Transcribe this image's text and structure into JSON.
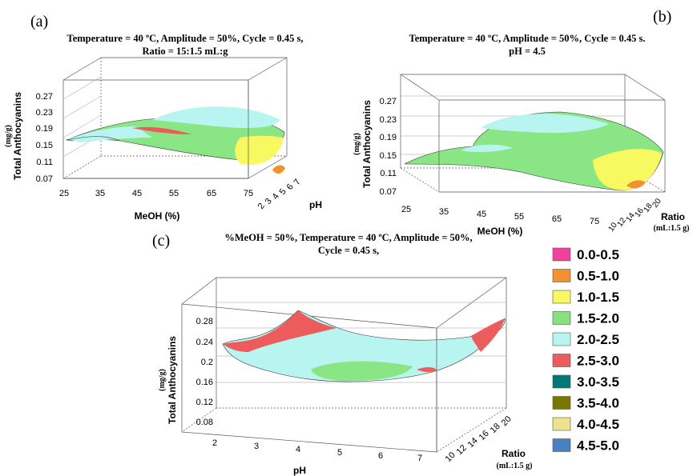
{
  "chart_data": [
    {
      "id": "a",
      "type": "surface3d",
      "panel_label": "(a)",
      "conditions": [
        "Temperature = 40 ºC, Amplitude = 50%, Cycle = 0.45 s,",
        "Ratio = 15:1.5 mL:g"
      ],
      "xlabel": "MeOH  (%)",
      "ylabel": "pH",
      "zlabel": "Total Anthocyanins",
      "zunit": "(mg/g)",
      "x_ticks": [
        "25",
        "35",
        "45",
        "55",
        "65",
        "75"
      ],
      "y_ticks": [
        "2",
        "3",
        "4",
        "5",
        "6",
        "7"
      ],
      "z_ticks": [
        "0.27",
        "0.23",
        "0.19",
        "0.15",
        "0.11",
        "0.07"
      ]
    },
    {
      "id": "b",
      "type": "surface3d",
      "panel_label": "(b)",
      "conditions": [
        "Temperature = 40 ºC, Amplitude = 50%, Cycle = 0.45 s.",
        "pH = 4.5"
      ],
      "xlabel": "MeOH  (%)",
      "ylabel": "Ratio",
      "yunit": "(mL:1.5 g)",
      "zlabel": "Total Anthocyanins",
      "zunit": "(mg/g)",
      "x_ticks": [
        "25",
        "35",
        "45",
        "55",
        "65",
        "75"
      ],
      "y_ticks": [
        "10",
        "12",
        "14",
        "16",
        "18",
        "20"
      ],
      "z_ticks": [
        "0.27",
        "0.23",
        "0.19",
        "0.15",
        "0.11",
        "0.07"
      ]
    },
    {
      "id": "c",
      "type": "surface3d",
      "panel_label": "(c)",
      "conditions": [
        "%MeOH = 50%, Temperature = 40 ºC, Amplitude = 50%,",
        "Cycle = 0.45 s,"
      ],
      "xlabel": "pH",
      "ylabel": "Ratio",
      "yunit": "(mL:1.5 g)",
      "zlabel": "Total Anthocyanins",
      "zunit": "(mg/g)",
      "x_ticks": [
        "2",
        "3",
        "4",
        "5",
        "6",
        "7"
      ],
      "y_ticks": [
        "10",
        "12",
        "14",
        "16",
        "18",
        "20"
      ],
      "z_ticks": [
        "0.28",
        "0.24",
        "0.2",
        "0.16",
        "0.12",
        "0.08"
      ]
    }
  ],
  "legend": [
    {
      "label": "0.0-0.5",
      "color": "#f040a0"
    },
    {
      "label": "0.5-1.0",
      "color": "#f49030"
    },
    {
      "label": "1.0-1.5",
      "color": "#f8f860"
    },
    {
      "label": "1.5-2.0",
      "color": "#88e080"
    },
    {
      "label": "2.0-2.5",
      "color": "#b8f4f0"
    },
    {
      "label": "2.5-3.0",
      "color": "#ec5c5c"
    },
    {
      "label": "3.0-3.5",
      "color": "#007878"
    },
    {
      "label": "3.5-4.0",
      "color": "#787800"
    },
    {
      "label": "4.0-4.5",
      "color": "#ece48c"
    },
    {
      "label": "4.5-5.0",
      "color": "#4880c0"
    }
  ]
}
